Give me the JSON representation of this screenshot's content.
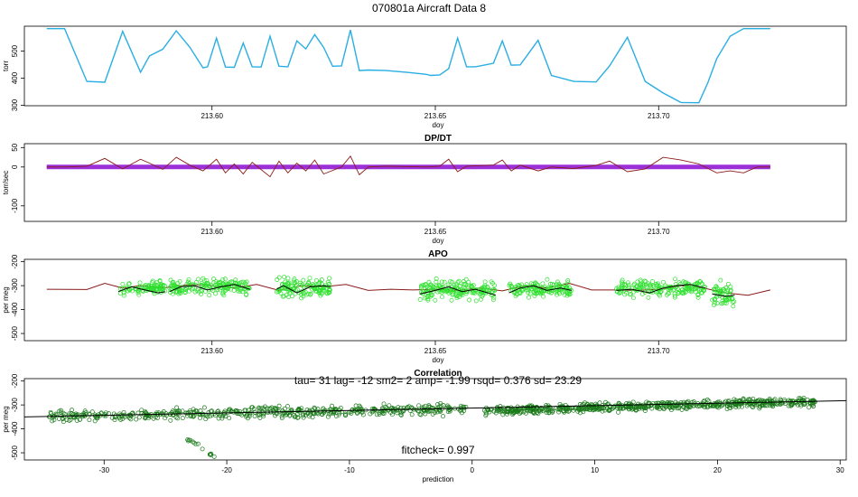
{
  "title": "070801a   Aircraft Data 8",
  "chart_data": [
    {
      "type": "line",
      "title": "",
      "xlabel": "doy",
      "ylabel": "torr",
      "xlim": [
        213.558,
        213.742
      ],
      "ylim": [
        298,
        592
      ],
      "xticks": [
        213.6,
        213.65,
        213.7
      ],
      "xtick_labels": [
        "213.60",
        "213.65",
        "213.70"
      ],
      "yticks": [
        300,
        400,
        500
      ],
      "ytick_labels": [
        "300",
        "400",
        "500"
      ],
      "series": [
        {
          "color": "#29aee3",
          "x": [
            213.563,
            213.567,
            213.572,
            213.576,
            213.58,
            213.584,
            213.586,
            213.589,
            213.592,
            213.595,
            213.598,
            213.599,
            213.601,
            213.603,
            213.605,
            213.607,
            213.609,
            213.611,
            213.613,
            213.615,
            213.617,
            213.619,
            213.621,
            213.623,
            213.625,
            213.627,
            213.629,
            213.631,
            213.633,
            213.635,
            213.639,
            213.644,
            213.648,
            213.649,
            213.651,
            213.653,
            213.655,
            213.657,
            213.659,
            213.663,
            213.665,
            213.667,
            213.669,
            213.673,
            213.676,
            213.681,
            213.686,
            213.689,
            213.693,
            213.697,
            213.701,
            213.705,
            213.709,
            213.711,
            213.713,
            213.716,
            213.719,
            213.722,
            213.725
          ],
          "y": [
            583,
            583,
            388,
            385,
            573,
            422,
            482,
            507,
            575,
            515,
            438,
            442,
            548,
            441,
            440,
            530,
            442,
            441,
            555,
            444,
            442,
            538,
            508,
            561,
            513,
            444,
            445,
            578,
            428,
            430,
            428,
            421,
            414,
            410,
            412,
            435,
            548,
            442,
            442,
            455,
            538,
            448,
            449,
            540,
            410,
            388,
            386,
            445,
            551,
            388,
            345,
            310,
            309,
            383,
            472,
            555,
            583,
            583,
            583
          ]
        }
      ]
    },
    {
      "type": "line",
      "title": "DP/DT",
      "xlabel": "doy",
      "ylabel": "torr/sec",
      "xlim": [
        213.558,
        213.742
      ],
      "ylim": [
        -140,
        60
      ],
      "xticks": [
        213.6,
        213.65,
        213.7
      ],
      "xtick_labels": [
        "213.60",
        "213.65",
        "213.70"
      ],
      "yticks": [
        -100,
        0,
        50
      ],
      "ytick_labels": [
        "-100",
        "0",
        "50"
      ],
      "series": [
        {
          "color": "#8b1a1a",
          "x": [
            213.563,
            213.567,
            213.572,
            213.576,
            213.58,
            213.584,
            213.586,
            213.589,
            213.592,
            213.595,
            213.598,
            213.601,
            213.603,
            213.605,
            213.607,
            213.609,
            213.613,
            213.615,
            213.617,
            213.619,
            213.621,
            213.623,
            213.625,
            213.629,
            213.631,
            213.633,
            213.635,
            213.639,
            213.648,
            213.651,
            213.653,
            213.655,
            213.657,
            213.663,
            213.665,
            213.667,
            213.669,
            213.673,
            213.676,
            213.681,
            213.686,
            213.689,
            213.693,
            213.697,
            213.701,
            213.705,
            213.709,
            213.713,
            213.716,
            213.719,
            213.722,
            213.725
          ],
          "y": [
            0,
            0,
            2,
            22,
            -5,
            20,
            10,
            -6,
            25,
            5,
            -10,
            20,
            -15,
            8,
            -18,
            12,
            -25,
            15,
            -15,
            10,
            -10,
            18,
            -18,
            0,
            28,
            -20,
            0,
            2,
            0,
            2,
            20,
            -12,
            2,
            5,
            18,
            -10,
            5,
            -10,
            0,
            -4,
            4,
            15,
            -12,
            -5,
            25,
            18,
            8,
            -15,
            -10,
            -15,
            0,
            0
          ]
        },
        {
          "color": "#9b30d9",
          "x": [
            213.563,
            213.725
          ],
          "y": [
            0,
            0
          ]
        }
      ]
    },
    {
      "type": "scatter",
      "title": "APO",
      "xlabel": "doy",
      "ylabel": "per meg",
      "xlim": [
        213.558,
        213.742
      ],
      "ylim": [
        -530,
        -190
      ],
      "xticks": [
        213.6,
        213.65,
        213.7
      ],
      "xtick_labels": [
        "213.60",
        "213.65",
        "213.70"
      ],
      "yticks": [
        -500,
        -400,
        -300,
        -200
      ],
      "ytick_labels": [
        "-500",
        "-400",
        "-300",
        "-200"
      ],
      "line_series": {
        "color": "#8b1a1a",
        "x": [
          213.563,
          213.572,
          213.576,
          213.58,
          213.584,
          213.589,
          213.595,
          213.6,
          213.605,
          213.61,
          213.615,
          213.62,
          213.625,
          213.63,
          213.635,
          213.64,
          213.645,
          213.65,
          213.655,
          213.66,
          213.665,
          213.67,
          213.675,
          213.68,
          213.685,
          213.69,
          213.695,
          213.7,
          213.705,
          213.71,
          213.715,
          213.72,
          213.725
        ],
        "y": [
          -315,
          -316,
          -290,
          -310,
          -300,
          -310,
          -295,
          -300,
          -310,
          -295,
          -320,
          -300,
          -305,
          -295,
          -320,
          -315,
          -318,
          -315,
          -320,
          -310,
          -322,
          -300,
          -310,
          -290,
          -318,
          -318,
          -320,
          -315,
          -300,
          -310,
          -330,
          -340,
          -318
        ]
      },
      "smooth_series": {
        "color": "#000000",
        "x": [
          213.579,
          213.582,
          213.585,
          213.588,
          213.5895,
          null,
          213.5905,
          213.593,
          213.596,
          213.599,
          213.602,
          213.605,
          213.6085,
          null,
          213.6145,
          213.616,
          213.619,
          213.622,
          213.625,
          213.6265,
          null,
          213.6465,
          213.65,
          213.653,
          213.656,
          213.659,
          213.6635,
          null,
          213.6665,
          213.669,
          213.672,
          213.675,
          213.678,
          213.6805,
          null,
          213.6905,
          213.694,
          213.698,
          213.701,
          213.704,
          213.707,
          213.7105,
          null,
          213.712,
          213.715,
          213.717
        ],
        "y": [
          -325,
          -305,
          -318,
          -330,
          -325,
          null,
          -325,
          -305,
          -300,
          -318,
          -305,
          -295,
          -315,
          null,
          -315,
          -300,
          -330,
          -305,
          -300,
          -305,
          null,
          -335,
          -320,
          -305,
          -325,
          -315,
          -340,
          null,
          -330,
          -310,
          -300,
          -320,
          -310,
          -320,
          null,
          -320,
          -315,
          -330,
          -310,
          -300,
          -295,
          -310,
          null,
          -335,
          -345,
          -340
        ]
      },
      "points": {
        "color": "#2fe02f",
        "segments": [
          {
            "x_from": 213.5795,
            "x_to": 213.5895,
            "center": -310,
            "spread": 60,
            "count": 90
          },
          {
            "x_from": 213.5905,
            "x_to": 213.6085,
            "center": -305,
            "spread": 70,
            "count": 170
          },
          {
            "x_from": 213.6145,
            "x_to": 213.6265,
            "center": -310,
            "spread": 90,
            "count": 130
          },
          {
            "x_from": 213.6465,
            "x_to": 213.6635,
            "center": -320,
            "spread": 100,
            "count": 180
          },
          {
            "x_from": 213.6665,
            "x_to": 213.6805,
            "center": -315,
            "spread": 75,
            "count": 140
          },
          {
            "x_from": 213.6905,
            "x_to": 213.7105,
            "center": -310,
            "spread": 80,
            "count": 180
          },
          {
            "x_from": 213.712,
            "x_to": 213.717,
            "center": -340,
            "spread": 120,
            "count": 60
          }
        ]
      }
    },
    {
      "type": "scatter",
      "title": "Correlation",
      "xlabel": "prediction",
      "ylabel": "per meg",
      "xlim": [
        -36.5,
        30.5
      ],
      "ylim": [
        -530,
        -190
      ],
      "xticks": [
        -30,
        -20,
        -10,
        0,
        10,
        20,
        30
      ],
      "xtick_labels": [
        "-30",
        "-20",
        "-10",
        "0",
        "10",
        "20",
        "30"
      ],
      "yticks": [
        -500,
        -400,
        -300,
        -200
      ],
      "ytick_labels": [
        "-500",
        "-400",
        "-300",
        "-200"
      ],
      "annotation_top": "tau= 31 lag= -12 sm2= 2 amp= -1.99 rsqd= 0.376 sd= 23.29",
      "annotation_bottom": "fitcheck= 0.997",
      "fit_line": {
        "color": "#000000",
        "x": [
          -36.5,
          30.5
        ],
        "y": [
          -350,
          -282
        ]
      },
      "points": {
        "color": "#1a7a1a",
        "clusters": [
          {
            "x_from": -34.5,
            "x_to": -0.5,
            "y_at_from": -350,
            "y_at_to": -315,
            "spread": 55,
            "count": 520
          },
          {
            "x_from": 1.0,
            "x_to": 28.0,
            "y_at_from": -325,
            "y_at_to": -285,
            "spread": 45,
            "count": 650
          },
          {
            "x_from": -23.5,
            "x_to": -21.0,
            "y_at_from": -430,
            "y_at_to": -520,
            "spread": 20,
            "count": 14
          }
        ]
      }
    }
  ]
}
